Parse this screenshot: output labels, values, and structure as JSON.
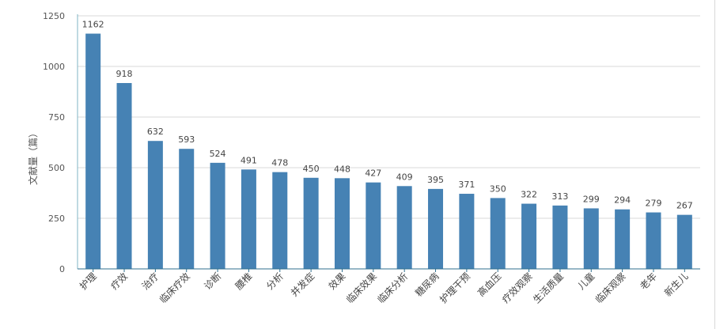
{
  "chart_data": {
    "type": "bar",
    "title": "",
    "xlabel": "",
    "ylabel": "文献量（篇）",
    "ylim": [
      0,
      1250
    ],
    "yticks": [
      0,
      250,
      500,
      750,
      1000,
      1250
    ],
    "grid": true,
    "legend": "none",
    "bar_color": "#4682b4",
    "categories": [
      "护理",
      "疗效",
      "治疗",
      "临床疗效",
      "诊断",
      "腰椎",
      "分析",
      "并发症",
      "效果",
      "临床效果",
      "临床分析",
      "糖尿病",
      "护理干预",
      "高血压",
      "疗效观察",
      "生活质量",
      "儿童",
      "临床观察",
      "老年",
      "新生儿"
    ],
    "values": [
      1162,
      918,
      632,
      593,
      524,
      491,
      478,
      450,
      448,
      427,
      409,
      395,
      371,
      350,
      322,
      313,
      299,
      294,
      279,
      267
    ]
  }
}
